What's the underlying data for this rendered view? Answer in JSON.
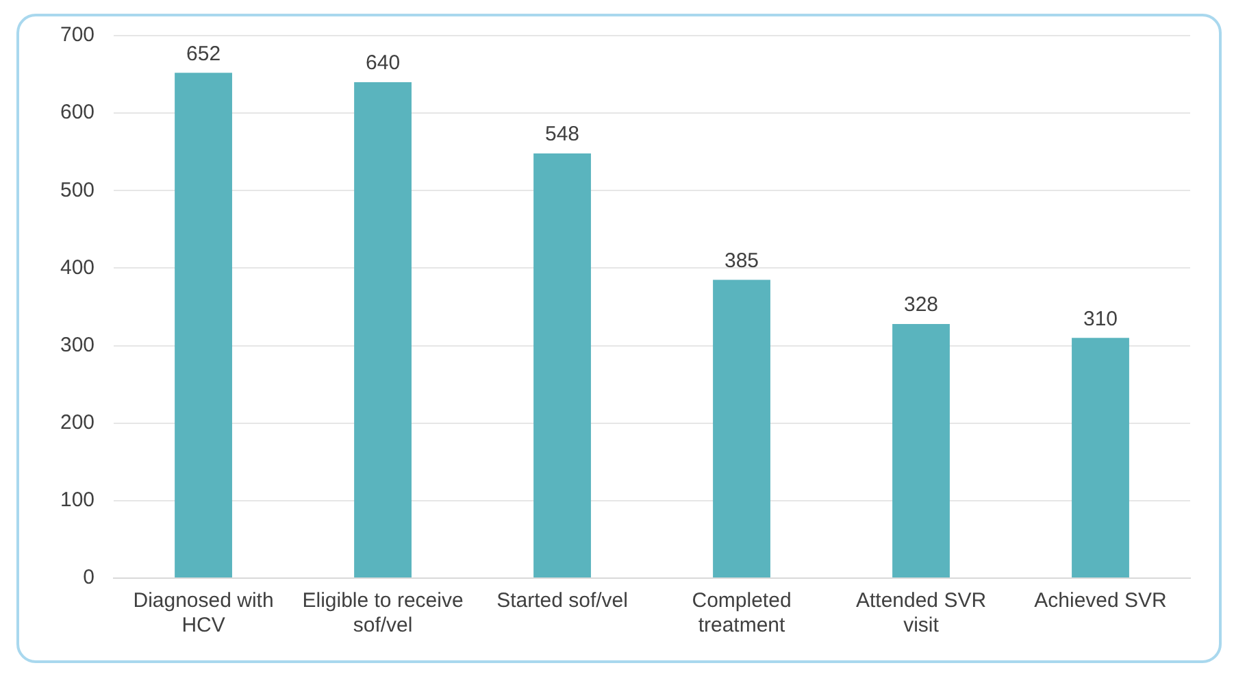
{
  "chart_data": {
    "type": "bar",
    "categories": [
      "Diagnosed with HCV",
      "Eligible to receive sof/vel",
      "Started sof/vel",
      "Completed treatment",
      "Attended SVR visit",
      "Achieved SVR"
    ],
    "values": [
      652,
      640,
      548,
      385,
      328,
      310
    ],
    "color": "#5ab4be",
    "ylim": [
      0,
      700
    ],
    "yticks": [
      0,
      100,
      200,
      300,
      400,
      500,
      600,
      700
    ],
    "grid": "y",
    "data_labels": true
  }
}
